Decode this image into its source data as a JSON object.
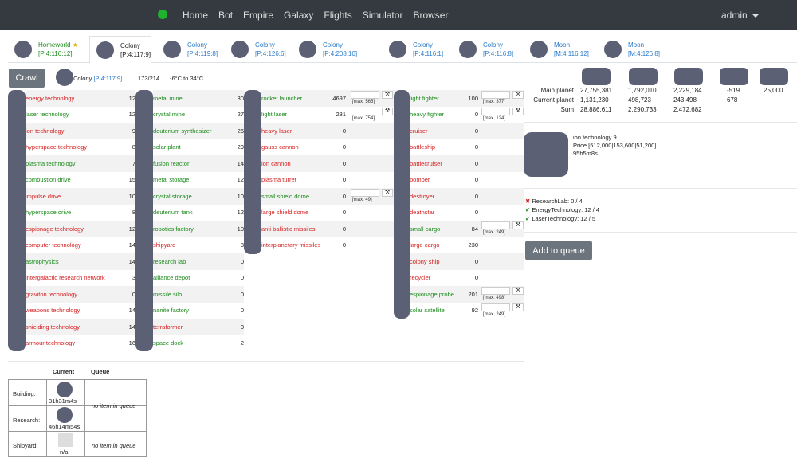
{
  "nav": {
    "links": [
      "Home",
      "Bot",
      "Empire",
      "Galaxy",
      "Flights",
      "Simulator",
      "Browser"
    ],
    "user": "admin"
  },
  "tabs": [
    {
      "name": "Homeworld",
      "star": "★",
      "coord": "[P:4:116:12]",
      "style": "green"
    },
    {
      "name": "Colony",
      "coord": "[P:4:117:9]",
      "style": "active"
    },
    {
      "name": "Colony",
      "coord": "[P:4:119:8]",
      "style": "blue"
    },
    {
      "name": "Colony",
      "coord": "[P:4:126:6]",
      "style": "blue"
    },
    {
      "name": "Colony",
      "coord": "[P:4:208:10]",
      "style": "blue"
    },
    {
      "name": "Colony",
      "coord": "[P:4:116:1]",
      "style": "blue"
    },
    {
      "name": "Colony",
      "coord": "[P:4:116:8]",
      "style": "blue"
    },
    {
      "name": "Moon",
      "coord": "[M:4:116:12]",
      "style": "blue"
    },
    {
      "name": "Moon",
      "coord": "[M:4:126:8]",
      "style": "blue"
    }
  ],
  "toolbar": {
    "crawl": "Crawl",
    "colony_name": "Colony",
    "colony_coord": "[P:4:117:9]",
    "fields": "173/214",
    "temperature": "-6°C to 34°C"
  },
  "research": [
    {
      "n": "energy technology",
      "v": "12",
      "c": "red"
    },
    {
      "n": "laser technology",
      "v": "12",
      "c": "grn"
    },
    {
      "n": "ion technology",
      "v": "9",
      "c": "red"
    },
    {
      "n": "hyperspace technology",
      "v": "8",
      "c": "red"
    },
    {
      "n": "plasma technology",
      "v": "7",
      "c": "grn"
    },
    {
      "n": "combustion drive",
      "v": "15",
      "c": "grn"
    },
    {
      "n": "impulse drive",
      "v": "10",
      "c": "red"
    },
    {
      "n": "hyperspace drive",
      "v": "8",
      "c": "grn"
    },
    {
      "n": "espionage technology",
      "v": "12",
      "c": "red"
    },
    {
      "n": "computer technology",
      "v": "14",
      "c": "red"
    },
    {
      "n": "astrophysics",
      "v": "14",
      "c": "grn"
    },
    {
      "n": "intergalactic research network",
      "v": "3",
      "c": "red"
    },
    {
      "n": "graviton technology",
      "v": "0",
      "c": "red"
    },
    {
      "n": "weapons technology",
      "v": "14",
      "c": "red"
    },
    {
      "n": "shielding technology",
      "v": "14",
      "c": "red"
    },
    {
      "n": "armour technology",
      "v": "16",
      "c": "red"
    }
  ],
  "buildings": [
    {
      "n": "metal mine",
      "v": "30",
      "c": "grn"
    },
    {
      "n": "crystal mine",
      "v": "27",
      "c": "grn"
    },
    {
      "n": "deuterium synthesizer",
      "v": "26",
      "c": "grn"
    },
    {
      "n": "solar plant",
      "v": "29",
      "c": "grn"
    },
    {
      "n": "fusion reactor",
      "v": "14",
      "c": "grn"
    },
    {
      "n": "metal storage",
      "v": "12",
      "c": "grn"
    },
    {
      "n": "crystal storage",
      "v": "10",
      "c": "grn"
    },
    {
      "n": "deuterium tank",
      "v": "12",
      "c": "grn"
    },
    {
      "n": "robotics factory",
      "v": "10",
      "c": "grn"
    },
    {
      "n": "shipyard",
      "v": "3",
      "c": "red"
    },
    {
      "n": "research lab",
      "v": "0",
      "c": "grn"
    },
    {
      "n": "alliance depot",
      "v": "0",
      "c": "grn"
    },
    {
      "n": "missile silo",
      "v": "0",
      "c": "grn"
    },
    {
      "n": "nanite factory",
      "v": "0",
      "c": "grn"
    },
    {
      "n": "terraformer",
      "v": "0",
      "c": "red"
    },
    {
      "n": "space dock",
      "v": "2",
      "c": "grn"
    }
  ],
  "defense": [
    {
      "n": "rocket launcher",
      "v": "4697",
      "c": "grn",
      "max": "[max. 565]"
    },
    {
      "n": "light laser",
      "v": "281",
      "c": "grn",
      "max": "[max. 754]"
    },
    {
      "n": "heavy laser",
      "v": "0",
      "c": "red"
    },
    {
      "n": "gauss cannon",
      "v": "0",
      "c": "red"
    },
    {
      "n": "ion cannon",
      "v": "0",
      "c": "red"
    },
    {
      "n": "plasma turret",
      "v": "0",
      "c": "red"
    },
    {
      "n": "small shield dome",
      "v": "0",
      "c": "grn",
      "max": "[max. 49]"
    },
    {
      "n": "large shield dome",
      "v": "0",
      "c": "red"
    },
    {
      "n": "anti ballistic missiles",
      "v": "0",
      "c": "red"
    },
    {
      "n": "interplanetary missiles",
      "v": "0",
      "c": "red"
    }
  ],
  "ships": [
    {
      "n": "light fighter",
      "v": "100",
      "c": "grn",
      "max": "[max. 377]"
    },
    {
      "n": "heavy fighter",
      "v": "0",
      "c": "grn",
      "max": "[max. 124]"
    },
    {
      "n": "cruiser",
      "v": "0",
      "c": "red"
    },
    {
      "n": "battleship",
      "v": "0",
      "c": "red"
    },
    {
      "n": "battlecruiser",
      "v": "0",
      "c": "red"
    },
    {
      "n": "bomber",
      "v": "0",
      "c": "red"
    },
    {
      "n": "destroyer",
      "v": "0",
      "c": "red"
    },
    {
      "n": "deathstar",
      "v": "0",
      "c": "red"
    },
    {
      "n": "small cargo",
      "v": "84",
      "c": "grn",
      "max": "[max. 249]"
    },
    {
      "n": "large cargo",
      "v": "230",
      "c": "red"
    },
    {
      "n": "colony ship",
      "v": "0",
      "c": "red"
    },
    {
      "n": "recycler",
      "v": "0",
      "c": "red"
    },
    {
      "n": "espionage probe",
      "v": "201",
      "c": "grn",
      "max": "[max. 498]"
    },
    {
      "n": "solar satellite",
      "v": "92",
      "c": "grn",
      "max": "[max. 249]"
    }
  ],
  "stats": {
    "labels": [
      "Main planet",
      "Current planet",
      "Sum"
    ],
    "cols": [
      [
        "27,755,381",
        "1,131,230",
        "28,886,611"
      ],
      [
        "1,792,010",
        "498,723",
        "2,290,733"
      ],
      [
        "2,229,184",
        "243,498",
        "2,472,682"
      ],
      [
        "-519",
        "678",
        ""
      ],
      [
        "25,000",
        "",
        ""
      ]
    ]
  },
  "research_info": {
    "name": "ion technology 9",
    "price": "Price [512,000|153,600|51,200]",
    "time": "95h5m8s"
  },
  "requirements": [
    {
      "mark": "✖",
      "ok": false,
      "text": "ResearchLab: 0 / 4"
    },
    {
      "mark": "✔",
      "ok": true,
      "text": "EnergyTechnology: 12 / 4"
    },
    {
      "mark": "✔",
      "ok": true,
      "text": "LaserTechnology: 12 / 5"
    }
  ],
  "add_queue": "Add to queue",
  "queue": {
    "h_current": "Current",
    "h_queue": "Queue",
    "building": "Building:",
    "building_time": "31h31m4s",
    "building_q": "no item in queue",
    "research": "Research:",
    "research_time": "46h14m54s",
    "shipyard": "Shipyard:",
    "shipyard_cur": "n/a",
    "shipyard_q": "no item in queue"
  }
}
